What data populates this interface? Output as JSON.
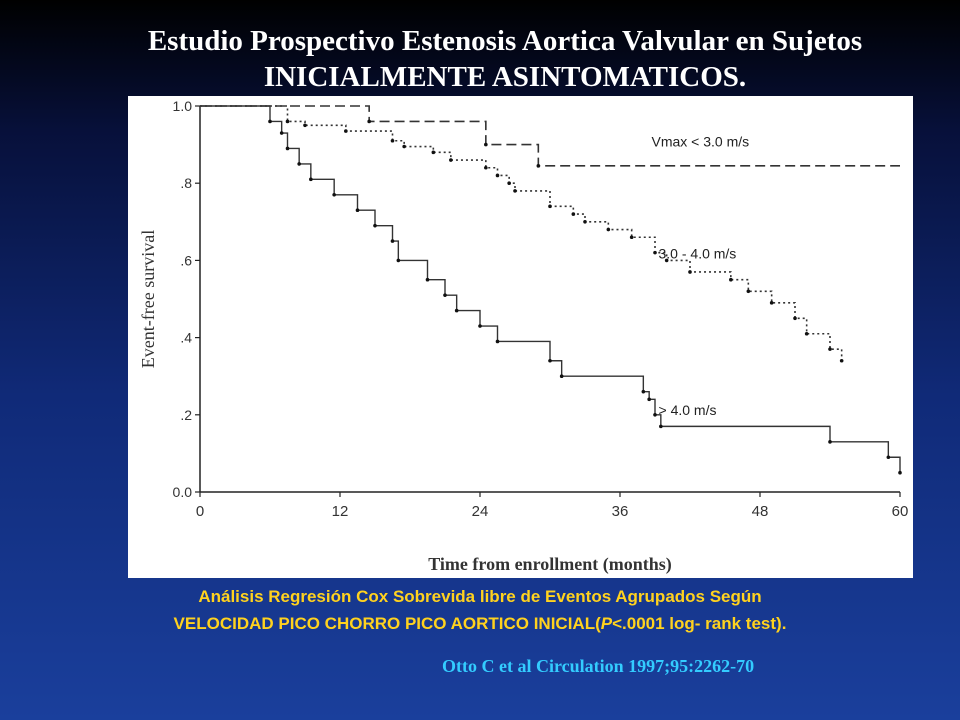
{
  "slide": {
    "title_line1": "Estudio Prospectivo Estenosis Aortica Valvular en Sujetos",
    "title_line2": "INICIALMENTE ASINTOMATICOS.",
    "caption_line1": "Análisis Regresión Cox Sobrevida libre de Eventos Agrupados Según",
    "caption_line2_a": "VELOCIDAD PICO CHORRO PICO AORTICO INICIAL(",
    "caption_line2_p": "P",
    "caption_line2_b": "<.0001 log- rank test).",
    "citation": "Otto C et al Circulation 1997;95:2262-70"
  },
  "colors": {
    "caption": "#ffd21e",
    "citation": "#33ccff",
    "title": "#ffffff"
  },
  "chart_data": {
    "type": "line",
    "subtype": "kaplan-meier step",
    "xlabel": "Time from enrollment (months)",
    "ylabel": "Event-free survival",
    "xlim": [
      0,
      60
    ],
    "ylim": [
      0,
      1
    ],
    "xticks": [
      "0",
      "12",
      "24",
      "36",
      "48",
      "60"
    ],
    "yticks": [
      "0.0",
      ".2",
      ".4",
      ".6",
      ".8",
      "1.0"
    ],
    "grid": false,
    "series": [
      {
        "name": "Vmax < 3.0 m/s",
        "style": "dashed",
        "x": [
          0,
          14.5,
          24.5,
          29,
          60
        ],
        "y": [
          1.0,
          0.96,
          0.9,
          0.845,
          0.845
        ]
      },
      {
        "name": "3.0 - 4.0 m/s",
        "style": "dotted",
        "x": [
          0,
          7.5,
          9,
          12.5,
          16.5,
          17.5,
          20,
          21.5,
          24.5,
          25.5,
          26.5,
          27,
          30,
          32,
          33,
          35,
          37,
          39,
          40,
          42,
          45.5,
          47,
          49,
          51,
          52,
          54,
          55
        ],
        "y": [
          1.0,
          0.96,
          0.95,
          0.935,
          0.91,
          0.895,
          0.88,
          0.86,
          0.84,
          0.82,
          0.8,
          0.78,
          0.74,
          0.72,
          0.7,
          0.68,
          0.66,
          0.62,
          0.6,
          0.57,
          0.55,
          0.52,
          0.49,
          0.45,
          0.41,
          0.37,
          0.34
        ]
      },
      {
        "name": "> 4.0 m/s",
        "style": "solid",
        "x": [
          0,
          6,
          7,
          7.5,
          8.5,
          9.5,
          11.5,
          13.5,
          15,
          16.5,
          17,
          19.5,
          21,
          22,
          24,
          25.5,
          30,
          31,
          38,
          38.5,
          39,
          39.5,
          54,
          59,
          60
        ],
        "y": [
          1.0,
          0.96,
          0.93,
          0.89,
          0.85,
          0.81,
          0.77,
          0.73,
          0.69,
          0.65,
          0.6,
          0.55,
          0.51,
          0.47,
          0.43,
          0.39,
          0.34,
          0.3,
          0.26,
          0.24,
          0.2,
          0.17,
          0.13,
          0.09,
          0.05
        ]
      }
    ],
    "annotations": [
      {
        "text": "Vmax < 3.0 m/s",
        "series": 0
      },
      {
        "text": "3.0 - 4.0 m/s",
        "series": 1
      },
      {
        "text": "> 4.0 m/s",
        "series": 2
      }
    ]
  }
}
